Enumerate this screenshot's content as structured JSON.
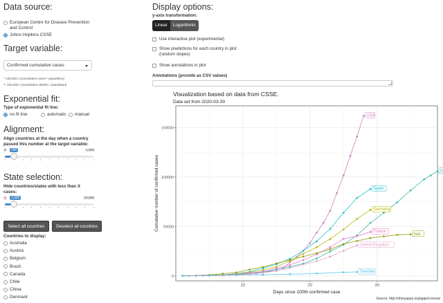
{
  "data_source": {
    "heading": "Data source:",
    "options": [
      "European Centre for Disease Prevention",
      "and Control",
      "Johns Hopkins CSSE"
    ]
  },
  "target_variable": {
    "heading": "Target variable:",
    "selected": "Confirmed cumulative cases",
    "note1": "* 100,000 x (cumulative cases / population)",
    "note2": "** 100,000 x (cumulative deaths / population)"
  },
  "exp_fit": {
    "heading": "Exponential fit:",
    "label": "Type of exponential fit line:",
    "options": [
      "no fit line",
      "automatic",
      "manual"
    ]
  },
  "alignment": {
    "heading": "Alignment:",
    "desc1": "Align countries at the day when a country",
    "desc2": "passed this number at the target variable:",
    "min": "0",
    "max": "1,000",
    "value": "100",
    "value_fraction": 0.1
  },
  "state_selection": {
    "heading": "State selection:",
    "desc1": "Hide countries/states with less than X",
    "desc2": "cases:",
    "min": "1",
    "max": "10,000",
    "value": "1,000",
    "value_fraction": 0.1,
    "select_all": "Select all countries",
    "deselect_all": "Deselect all countries",
    "countries_label": "Countries to display:",
    "countries": [
      "Australia",
      "Austria",
      "Belgium",
      "Brazil",
      "Canada",
      "Chile",
      "China",
      "Denmark",
      "Ecuador"
    ]
  },
  "display": {
    "heading": "Display options:",
    "yaxis_label": "y-axis transformation:",
    "linear": "Linear",
    "log": "Logarithmic",
    "checks": [
      "Use interactive plot (experimental)",
      "Show predictions for each country in plot",
      "(random slopes)",
      "Show annotations in plot"
    ],
    "annotations_label": "Annotations (provide as CSV values)"
  },
  "chart_data": {
    "type": "line",
    "title": "Visualization based on data from CSSE.",
    "subtitle": "Data set from 2020-03-30",
    "xlabel": "Days since 100th confirmed case",
    "ylabel": "Cumulative number of confirmed cases",
    "caption": "Source: http://shinyapps.org/apps/corona/",
    "xlim": [
      0,
      39
    ],
    "ylim": [
      -5000,
      172000
    ],
    "xticks": [
      10,
      20,
      30
    ],
    "yticks": [
      0,
      50000,
      100000,
      150000
    ],
    "ytick_labels": [
      "0",
      "50000",
      "100000",
      "150000"
    ],
    "grid": true,
    "series": [
      {
        "name": "USA",
        "color": "#c77cb5",
        "x": [
          1,
          2,
          3,
          4,
          5,
          6,
          7,
          8,
          9,
          10,
          11,
          12,
          13,
          14,
          15,
          16,
          17,
          18,
          19,
          20,
          21,
          22,
          23,
          24,
          25,
          26,
          27,
          28
        ],
        "values": [
          100,
          160,
          230,
          320,
          450,
          580,
          750,
          1050,
          1300,
          1700,
          2200,
          2700,
          3500,
          4600,
          6400,
          7800,
          13700,
          19100,
          25500,
          33300,
          43800,
          53700,
          65800,
          83800,
          101700,
          121500,
          140900,
          161800
        ]
      },
      {
        "name": "Italy",
        "color": "#2fb5a5",
        "x": [
          1,
          3,
          5,
          7,
          9,
          11,
          13,
          15,
          17,
          19,
          21,
          23,
          25,
          27,
          29,
          31,
          33,
          35,
          37,
          38,
          39
        ],
        "values": [
          150,
          280,
          650,
          1130,
          1700,
          2500,
          3900,
          6400,
          9200,
          12500,
          17700,
          24700,
          31500,
          41000,
          53600,
          63900,
          74400,
          86500,
          97700,
          101700,
          105800
        ]
      },
      {
        "name": "Spain",
        "color": "#17becf",
        "x": [
          1,
          3,
          5,
          7,
          9,
          11,
          13,
          15,
          17,
          19,
          21,
          23,
          25,
          27,
          29
        ],
        "values": [
          120,
          230,
          440,
          1000,
          2300,
          4200,
          7800,
          11800,
          17400,
          25400,
          35000,
          47600,
          64000,
          78800,
          87900
        ]
      },
      {
        "name": "Germany",
        "color": "#b3b300",
        "x": [
          1,
          3,
          5,
          7,
          9,
          11,
          13,
          15,
          17,
          19,
          21,
          23,
          25,
          27,
          29
        ],
        "values": [
          130,
          260,
          640,
          1100,
          1900,
          3700,
          6000,
          9300,
          15300,
          22300,
          29000,
          37300,
          47000,
          57700,
          66900
        ]
      },
      {
        "name": "France",
        "color": "#e377c2",
        "x": [
          1,
          3,
          5,
          7,
          9,
          11,
          13,
          15,
          17,
          19,
          21,
          23,
          25,
          27,
          29
        ],
        "values": [
          130,
          210,
          420,
          950,
          1780,
          2900,
          4500,
          7700,
          11000,
          16000,
          22000,
          29000,
          37500,
          40200,
          44500
        ]
      },
      {
        "name": "Iran",
        "color": "#8a9a00",
        "x": [
          1,
          3,
          5,
          7,
          9,
          11,
          13,
          15,
          17,
          19,
          21,
          23,
          25,
          27,
          29,
          31,
          33,
          35
        ],
        "values": [
          140,
          390,
          980,
          2300,
          3500,
          6500,
          9000,
          12700,
          16100,
          19600,
          23000,
          27000,
          32300,
          35400,
          38300,
          40000,
          41500,
          42000
        ]
      },
      {
        "name": "United Kingdom",
        "color": "#e0a0c8",
        "x": [
          1,
          3,
          5,
          7,
          9,
          11,
          13,
          15,
          17,
          19,
          21,
          23,
          25,
          27
        ],
        "values": [
          110,
          200,
          370,
          600,
          1100,
          1950,
          3300,
          5000,
          8100,
          11700,
          15000,
          19500,
          25500,
          31000
        ]
      },
      {
        "name": "Sweden",
        "color": "#4fc3e8",
        "x": [
          1,
          5,
          9,
          13,
          17,
          21,
          25,
          27
        ],
        "values": [
          100,
          500,
          1000,
          1300,
          1800,
          2500,
          3700,
          4000
        ]
      }
    ]
  }
}
